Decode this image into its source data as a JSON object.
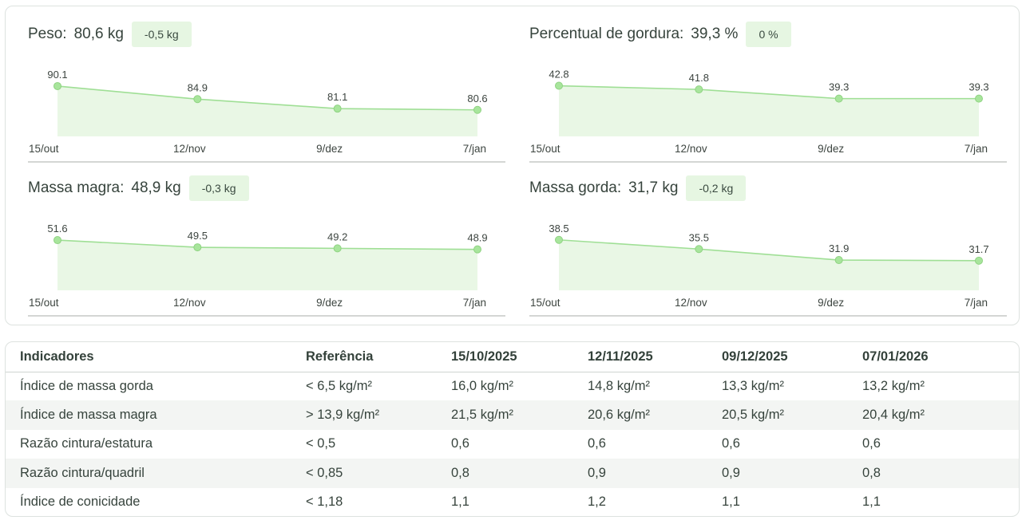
{
  "charts": [
    {
      "label": "Peso:",
      "value": "80,6 kg",
      "delta": "-0,5 kg"
    },
    {
      "label": "Percentual de gordura:",
      "value": "39,3 %",
      "delta": "0 %"
    },
    {
      "label": "Massa magra:",
      "value": "48,9 kg",
      "delta": "-0,3 kg"
    },
    {
      "label": "Massa gorda:",
      "value": "31,7 kg",
      "delta": "-0,2 kg"
    }
  ],
  "chart_data": [
    {
      "type": "area",
      "title": "Peso",
      "categories": [
        "15/out",
        "12/nov",
        "9/dez",
        "7/jan"
      ],
      "values": [
        90.1,
        84.9,
        81.1,
        80.6
      ],
      "labels": [
        "90.1",
        "84.9",
        "81.1",
        "80.6"
      ],
      "ylim": [
        70,
        92
      ]
    },
    {
      "type": "area",
      "title": "Percentual de gordura",
      "categories": [
        "15/out",
        "12/nov",
        "9/dez",
        "7/jan"
      ],
      "values": [
        42.8,
        41.8,
        39.3,
        39.3
      ],
      "labels": [
        "42.8",
        "41.8",
        "39.3",
        "39.3"
      ],
      "ylim": [
        29,
        44
      ]
    },
    {
      "type": "area",
      "title": "Massa magra",
      "categories": [
        "15/out",
        "12/nov",
        "9/dez",
        "7/jan"
      ],
      "values": [
        51.6,
        49.5,
        49.2,
        48.9
      ],
      "labels": [
        "51.6",
        "49.5",
        "49.2",
        "48.9"
      ],
      "ylim": [
        37,
        53
      ]
    },
    {
      "type": "area",
      "title": "Massa gorda",
      "categories": [
        "15/out",
        "12/nov",
        "9/dez",
        "7/jan"
      ],
      "values": [
        38.5,
        35.5,
        31.9,
        31.7
      ],
      "labels": [
        "38.5",
        "35.5",
        "31.9",
        "31.7"
      ],
      "ylim": [
        22,
        40
      ]
    }
  ],
  "table": {
    "headers": [
      "Indicadores",
      "Referência",
      "15/10/2025",
      "12/11/2025",
      "09/12/2025",
      "07/01/2026"
    ],
    "rows": [
      [
        "Índice de massa gorda",
        "< 6,5 kg/m²",
        "16,0 kg/m²",
        "14,8 kg/m²",
        "13,3 kg/m²",
        "13,2 kg/m²"
      ],
      [
        "Índice de massa magra",
        "> 13,9 kg/m²",
        "21,5 kg/m²",
        "20,6 kg/m²",
        "20,5 kg/m²",
        "20,4 kg/m²"
      ],
      [
        "Razão cintura/estatura",
        "< 0,5",
        "0,6",
        "0,6",
        "0,6",
        "0,6"
      ],
      [
        "Razão cintura/quadril",
        "< 0,85",
        "0,8",
        "0,9",
        "0,9",
        "0,8"
      ],
      [
        "Índice de conicidade",
        "< 1,18",
        "1,1",
        "1,2",
        "1,1",
        "1,1"
      ]
    ]
  },
  "colors": {
    "line": "#9fdf95",
    "fill": "#e9f7e5",
    "badge": "#e6f6e2"
  }
}
